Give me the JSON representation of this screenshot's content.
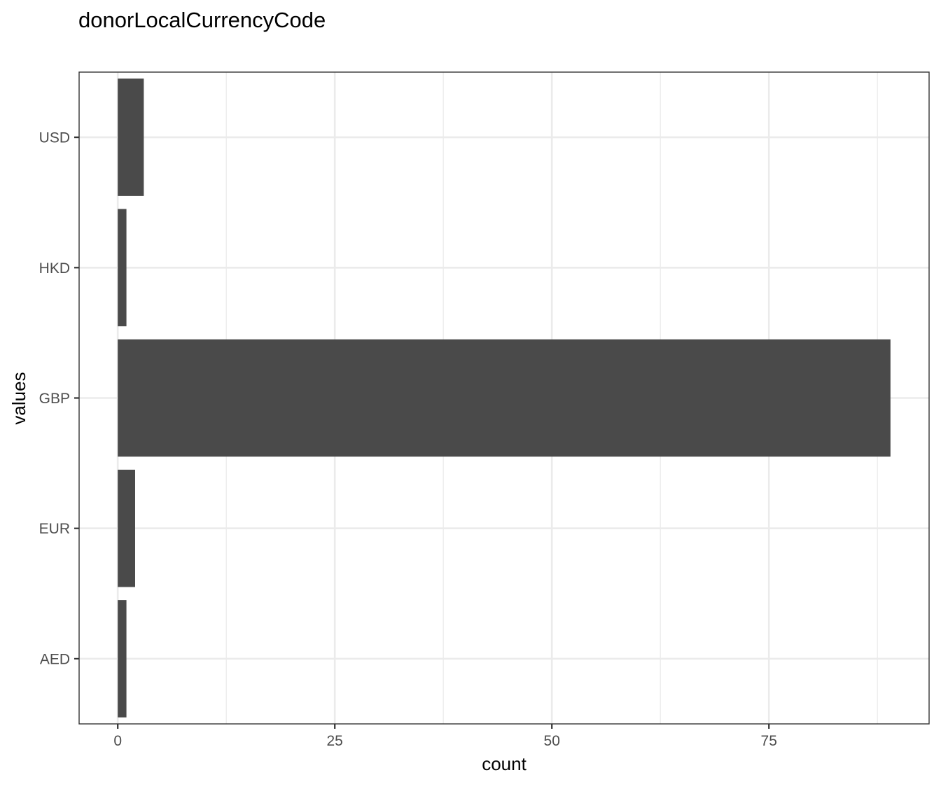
{
  "chart_data": {
    "type": "bar",
    "orientation": "horizontal",
    "title": "donorLocalCurrencyCode",
    "xlabel": "count",
    "ylabel": "values",
    "categories": [
      "AED",
      "EUR",
      "GBP",
      "HKD",
      "USD"
    ],
    "values": [
      1,
      2,
      89,
      1,
      3
    ],
    "xlim": [
      -4.45,
      93.45
    ],
    "xticks": [
      0,
      25,
      50,
      75
    ],
    "xtick_labels": [
      "0",
      "25",
      "50",
      "75"
    ],
    "grid": true,
    "theme": "bw",
    "bar_color": "#4a4a4a"
  }
}
